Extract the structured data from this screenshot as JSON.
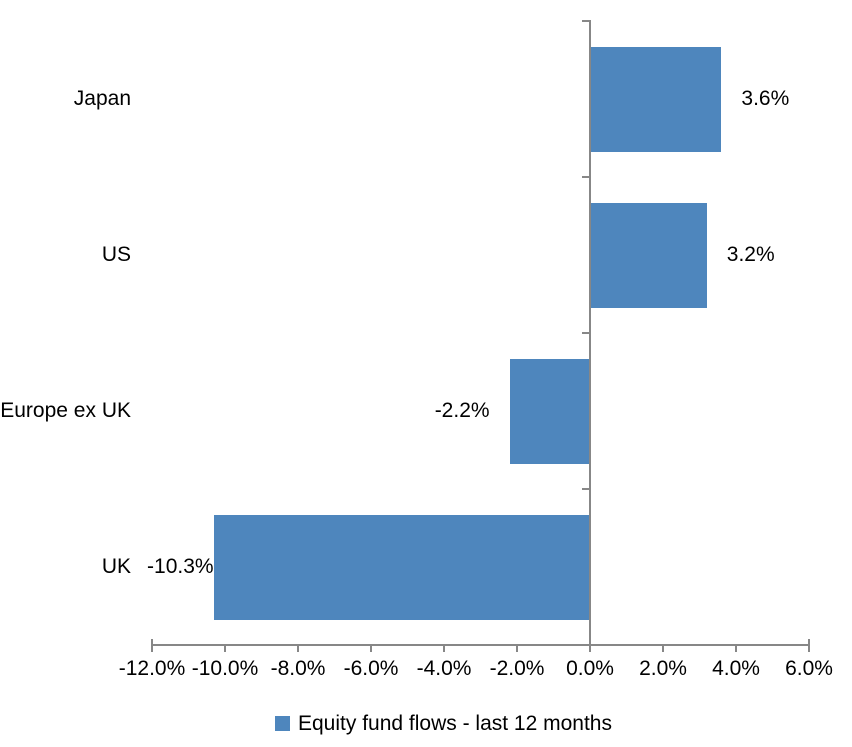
{
  "chart_data": {
    "type": "bar",
    "orientation": "horizontal",
    "title": "",
    "categories": [
      "Japan",
      "US",
      "Europe ex UK",
      "UK"
    ],
    "values": [
      3.6,
      3.2,
      -2.2,
      -10.3
    ],
    "data_labels": [
      "3.6%",
      "3.2%",
      "-2.2%",
      "-10.3%"
    ],
    "series": [
      {
        "name": "Equity fund flows - last 12 months",
        "values": [
          3.6,
          3.2,
          -2.2,
          -10.3
        ]
      }
    ],
    "xlabel": "",
    "ylabel": "",
    "xlim": [
      -12,
      6
    ],
    "x_tick_values": [
      -12,
      -10,
      -8,
      -6,
      -4,
      -2,
      0,
      2,
      4,
      6
    ],
    "x_tick_labels": [
      "-12.0%",
      "-10.0%",
      "-8.0%",
      "-6.0%",
      "-4.0%",
      "-2.0%",
      "0.0%",
      "2.0%",
      "4.0%",
      "6.0%"
    ],
    "grid": false,
    "legend_position": "bottom",
    "colors": {
      "bar": "#4E86BD",
      "axis": "#878787",
      "text": "#000000",
      "background": "#FFFFFF"
    }
  },
  "legend": {
    "label": "Equity fund flows - last 12 months",
    "marker_color": "#4E86BD"
  }
}
